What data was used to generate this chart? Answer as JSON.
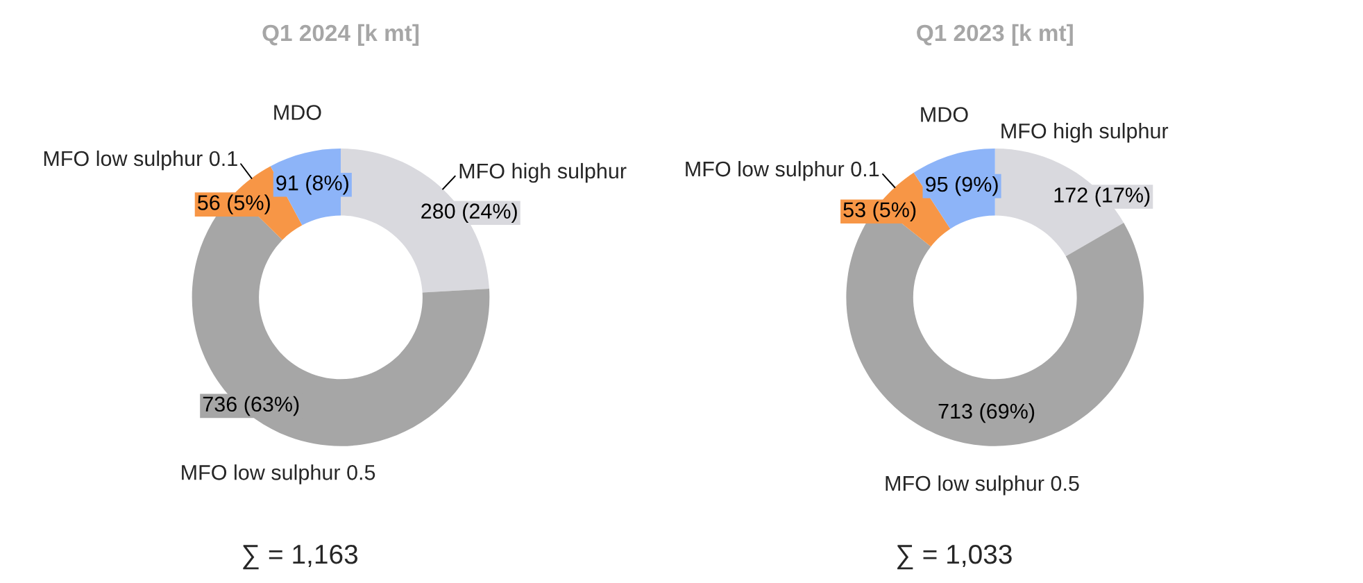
{
  "chart_data": [
    {
      "type": "donut",
      "title": "Q1 2024 [k mt]",
      "categories": [
        "MFO high sulphur",
        "MFO low sulphur 0.5",
        "MFO low sulphur 0.1",
        "MDO"
      ],
      "values": [
        280,
        736,
        56,
        91
      ],
      "colors": [
        "#d9d9de",
        "#a6a6a6",
        "#f79646",
        "#8db4f8"
      ],
      "value_labels": [
        "280 (24%)",
        "736 (63%)",
        "56 (5%)",
        "91 (8%)"
      ],
      "annotations": [
        "∑ = 1,163"
      ],
      "legend": false
    },
    {
      "type": "donut",
      "title": "Q1 2023 [k mt]",
      "categories": [
        "MFO high sulphur",
        "MFO low sulphur 0.5",
        "MFO low sulphur 0.1",
        "MDO"
      ],
      "values": [
        172,
        713,
        53,
        95
      ],
      "colors": [
        "#d9d9de",
        "#a6a6a6",
        "#f79646",
        "#8db4f8"
      ],
      "value_labels": [
        "172 (17%)",
        "713 (69%)",
        "53 (5%)",
        "95 (9%)"
      ],
      "annotations": [
        "∑ = 1,033"
      ],
      "legend": false
    }
  ]
}
